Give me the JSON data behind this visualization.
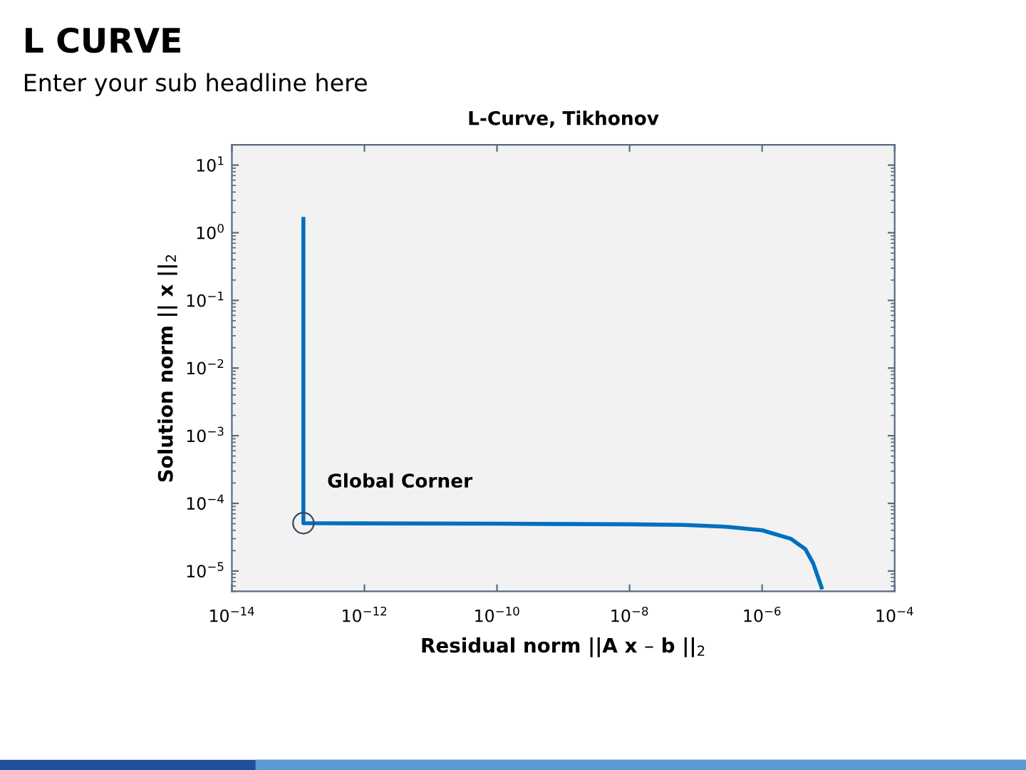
{
  "chart_data": {
    "type": "line",
    "title": "L CURVE",
    "subtitle": "Enter your sub headline here",
    "annotations": [
      "L-Curve, Tikhonov"
    ],
    "xlabel": "Residual norm ||A x – b ||$_{2}$",
    "ylabel": "Solution norm || x ||$_{2}$",
    "log": "xy",
    "grid": false,
    "legend": false,
    "xlim": [
      1e-14,
      0.0001
    ],
    "ylim": [
      5e-06,
      20
    ],
    "xticks": [
      {
        "value": 1e-14,
        "label": "10$^{−14}$"
      },
      {
        "value": 1e-12,
        "label": "10$^{−12}$"
      },
      {
        "value": 1e-10,
        "label": "10$^{−10}$"
      },
      {
        "value": 1e-08,
        "label": "10$^{−8}$"
      },
      {
        "value": 1e-06,
        "label": "10$^{−6}$"
      },
      {
        "value": 0.0001,
        "label": "10$^{−4}$"
      }
    ],
    "yticks": [
      {
        "value": 10,
        "label": "10$^{1}$"
      },
      {
        "value": 1,
        "label": "10$^{0}$"
      },
      {
        "value": 0.1,
        "label": "10$^{−1}$"
      },
      {
        "value": 0.01,
        "label": "10$^{−2}$"
      },
      {
        "value": 0.001,
        "label": "10$^{−3}$"
      },
      {
        "value": 0.0001,
        "label": "10$^{−4}$"
      },
      {
        "value": 1e-05,
        "label": "10$^{−5}$"
      }
    ],
    "series": [
      {
        "color": "#0070c0",
        "line_style": "solid",
        "marker": "none",
        "x": [
          1.2e-13,
          1.2e-13,
          1e-12,
          1e-10,
          1e-08,
          6.6e-08,
          3e-07,
          1e-06,
          2.7e-06,
          4.5e-06,
          5.9e-06,
          7.9e-06
        ],
        "values": [
          1.6,
          5.1e-05,
          5.05e-05,
          5e-05,
          4.9e-05,
          4.8e-05,
          4.5e-05,
          4e-05,
          3e-05,
          2.1e-05,
          1.3e-05,
          5.7e-06
        ]
      },
      {
        "type": "scatter",
        "name": "Global Corner",
        "color": "#3a4660",
        "marker": "circle",
        "x": [
          1.2e-13
        ],
        "values": [
          5.1e-05
        ]
      }
    ]
  }
}
